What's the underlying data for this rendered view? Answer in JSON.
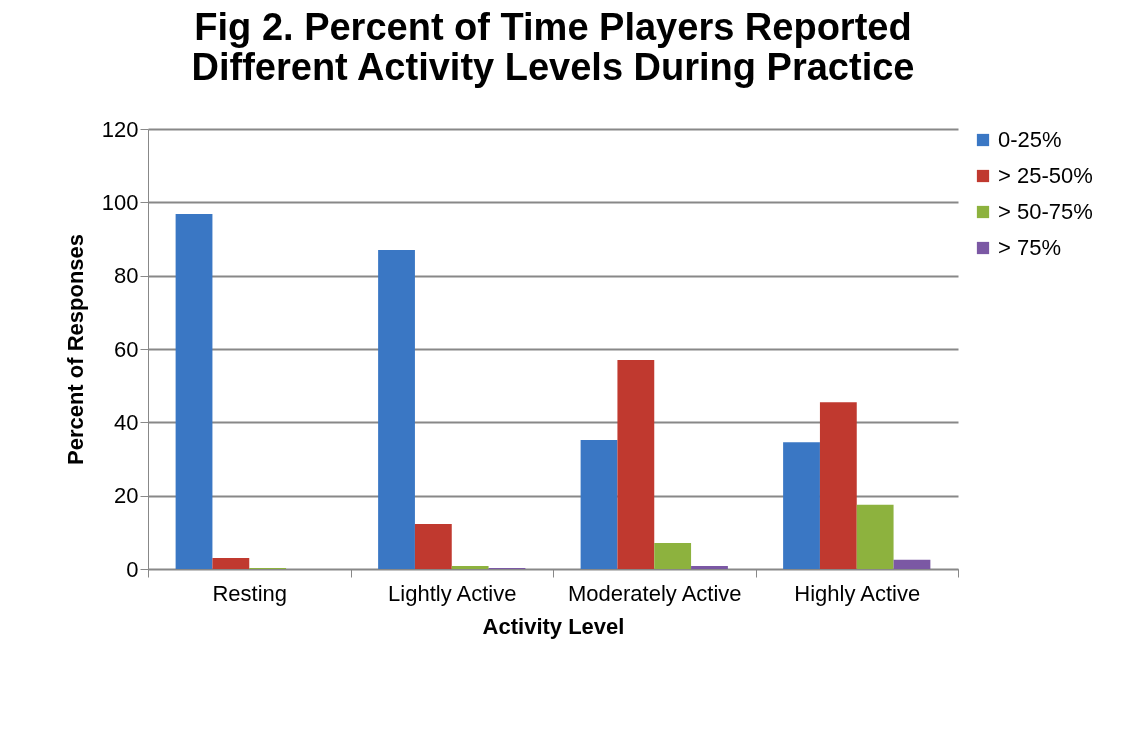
{
  "chart_data": {
    "type": "bar",
    "title": [
      "Fig 2. Percent of Time Players Reported",
      "Different Activity Levels During Practice"
    ],
    "xlabel": "Activity Level",
    "ylabel": "Percent of Responses",
    "categories": [
      "Resting",
      "Lightly Active",
      "Moderately Active",
      "Highly Active"
    ],
    "series": [
      {
        "name": "0-25%",
        "color": "#3a77c4",
        "values": [
          96.8,
          87.0,
          35.2,
          34.6
        ]
      },
      {
        "name": "> 25-50%",
        "color": "#c0392f",
        "values": [
          3.0,
          12.3,
          57.0,
          45.5
        ]
      },
      {
        "name": "> 50-75%",
        "color": "#8db23e",
        "values": [
          0.3,
          0.8,
          7.1,
          17.5
        ]
      },
      {
        "name": "> 75%",
        "color": "#7b58a4",
        "values": [
          0,
          0.3,
          0.8,
          2.5
        ]
      }
    ],
    "ylim": [
      0,
      120
    ],
    "yticks": [
      0,
      20,
      40,
      60,
      80,
      100,
      120
    ],
    "grid": "y",
    "legend": "right"
  }
}
